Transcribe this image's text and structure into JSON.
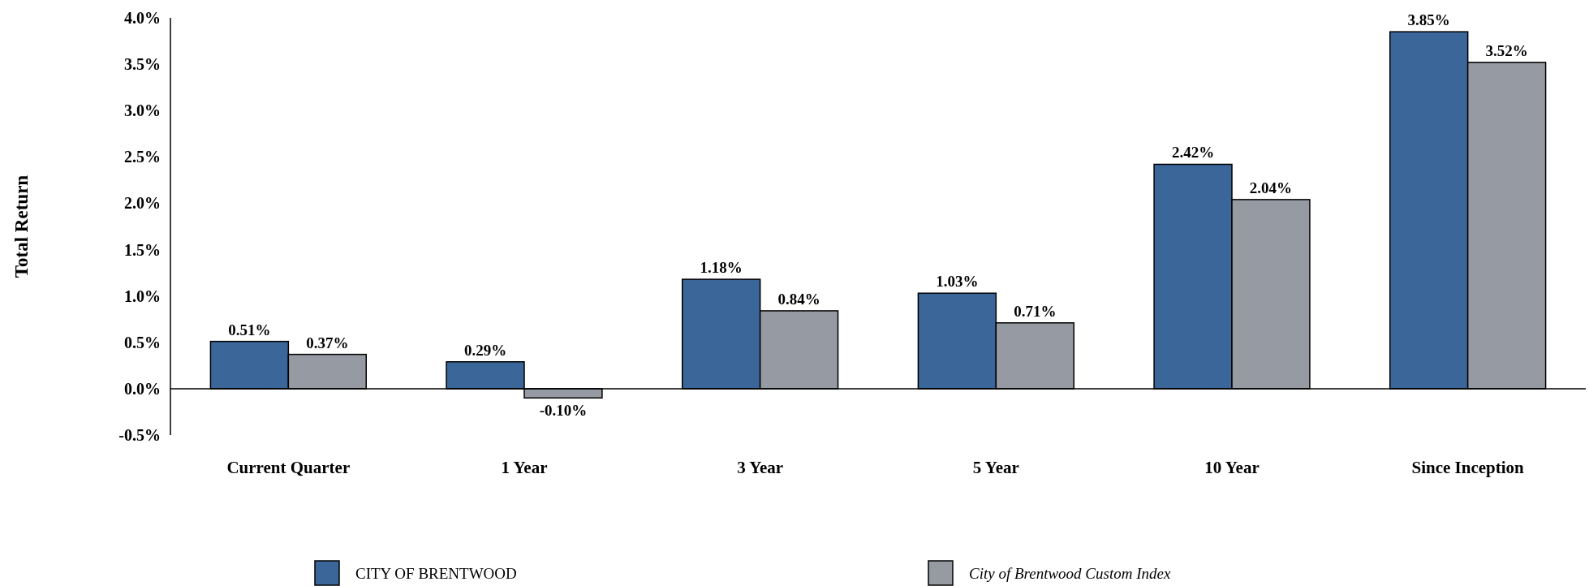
{
  "chart_data": {
    "type": "bar",
    "ylabel": "Total Return",
    "categories": [
      "Current Quarter",
      "1 Year",
      "3 Year",
      "5 Year",
      "10 Year",
      "Since Inception"
    ],
    "series": [
      {
        "name": "CITY OF BRENTWOOD",
        "color": "#3a6699",
        "values": [
          0.51,
          0.29,
          1.18,
          1.03,
          2.42,
          3.85
        ]
      },
      {
        "name": "City of Brentwood Custom Index",
        "color": "#959aa3",
        "values": [
          0.37,
          -0.1,
          0.84,
          0.71,
          2.04,
          3.52
        ]
      }
    ],
    "value_labels": [
      [
        "0.51%",
        "0.29%",
        "1.18%",
        "1.03%",
        "2.42%",
        "3.85%"
      ],
      [
        "0.37%",
        "-0.10%",
        "0.84%",
        "0.71%",
        "2.04%",
        "3.52%"
      ]
    ],
    "ylim": [
      -0.5,
      4.0
    ],
    "yticks": [
      {
        "value": -0.5,
        "label": "-0.5%"
      },
      {
        "value": 0,
        "label": "0.0%"
      },
      {
        "value": 0.5,
        "label": "0.5%"
      },
      {
        "value": 1,
        "label": "1.0%"
      },
      {
        "value": 1.5,
        "label": "1.5%"
      },
      {
        "value": 2,
        "label": "2.0%"
      },
      {
        "value": 2.5,
        "label": "2.5%"
      },
      {
        "value": 3,
        "label": "3.0%"
      },
      {
        "value": 3.5,
        "label": "3.5%"
      },
      {
        "value": 4,
        "label": "4.0%"
      }
    ],
    "legend": "bottom"
  }
}
